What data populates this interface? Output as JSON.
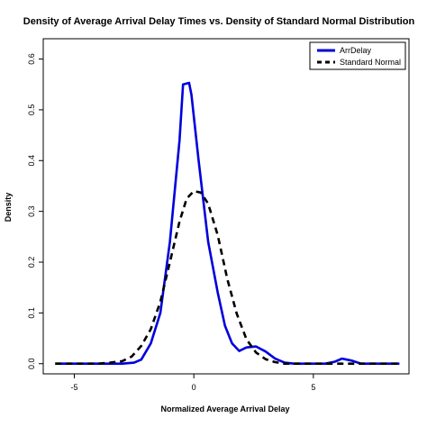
{
  "chart_data": {
    "type": "line",
    "title": "Density of Average Arrival Delay Times vs. Density of Standard Normal Distribution",
    "xlabel": "Normalized Average Arrival Delay",
    "ylabel": "Density",
    "xlim": [
      -6.3,
      9.0
    ],
    "ylim": [
      -0.02,
      0.64
    ],
    "x_ticks": [
      -5,
      0,
      5
    ],
    "x_tick_labels": [
      "-5",
      "0",
      "5"
    ],
    "y_ticks": [
      0.0,
      0.1,
      0.2,
      0.3,
      0.4,
      0.5,
      0.6
    ],
    "y_tick_labels": [
      "0.0",
      "0.1",
      "0.2",
      "0.3",
      "0.4",
      "0.5",
      "0.6"
    ],
    "grid": false,
    "legend_position": "top-right",
    "series": [
      {
        "name": "ArrDelay",
        "color": "#0000dd",
        "line_style": "solid",
        "points": [
          [
            -5.8,
            0.0
          ],
          [
            -3.0,
            0.0
          ],
          [
            -2.5,
            0.002
          ],
          [
            -2.2,
            0.008
          ],
          [
            -1.8,
            0.04
          ],
          [
            -1.4,
            0.1
          ],
          [
            -1.0,
            0.24
          ],
          [
            -0.6,
            0.44
          ],
          [
            -0.45,
            0.55
          ],
          [
            -0.2,
            0.553
          ],
          [
            -0.1,
            0.53
          ],
          [
            0.2,
            0.4
          ],
          [
            0.6,
            0.24
          ],
          [
            1.0,
            0.14
          ],
          [
            1.3,
            0.075
          ],
          [
            1.6,
            0.04
          ],
          [
            1.9,
            0.025
          ],
          [
            2.2,
            0.032
          ],
          [
            2.6,
            0.034
          ],
          [
            3.0,
            0.024
          ],
          [
            3.4,
            0.01
          ],
          [
            3.8,
            0.002
          ],
          [
            4.2,
            0.0
          ],
          [
            5.5,
            0.0
          ],
          [
            5.9,
            0.004
          ],
          [
            6.2,
            0.01
          ],
          [
            6.6,
            0.006
          ],
          [
            7.0,
            0.0
          ],
          [
            8.6,
            0.0
          ]
        ]
      },
      {
        "name": "Standard Normal",
        "color": "#000000",
        "line_style": "dashed",
        "points": [
          [
            -5.8,
            0.0
          ],
          [
            -4.0,
            0.0
          ],
          [
            -3.5,
            0.002
          ],
          [
            -3.0,
            0.005
          ],
          [
            -2.6,
            0.014
          ],
          [
            -2.2,
            0.035
          ],
          [
            -1.8,
            0.068
          ],
          [
            -1.4,
            0.122
          ],
          [
            -1.0,
            0.2
          ],
          [
            -0.6,
            0.28
          ],
          [
            -0.3,
            0.325
          ],
          [
            0.0,
            0.34
          ],
          [
            0.3,
            0.337
          ],
          [
            0.6,
            0.315
          ],
          [
            1.0,
            0.253
          ],
          [
            1.4,
            0.167
          ],
          [
            1.8,
            0.098
          ],
          [
            2.2,
            0.048
          ],
          [
            2.6,
            0.022
          ],
          [
            3.0,
            0.009
          ],
          [
            3.4,
            0.003
          ],
          [
            3.8,
            0.0
          ],
          [
            8.6,
            0.0
          ]
        ]
      }
    ]
  }
}
